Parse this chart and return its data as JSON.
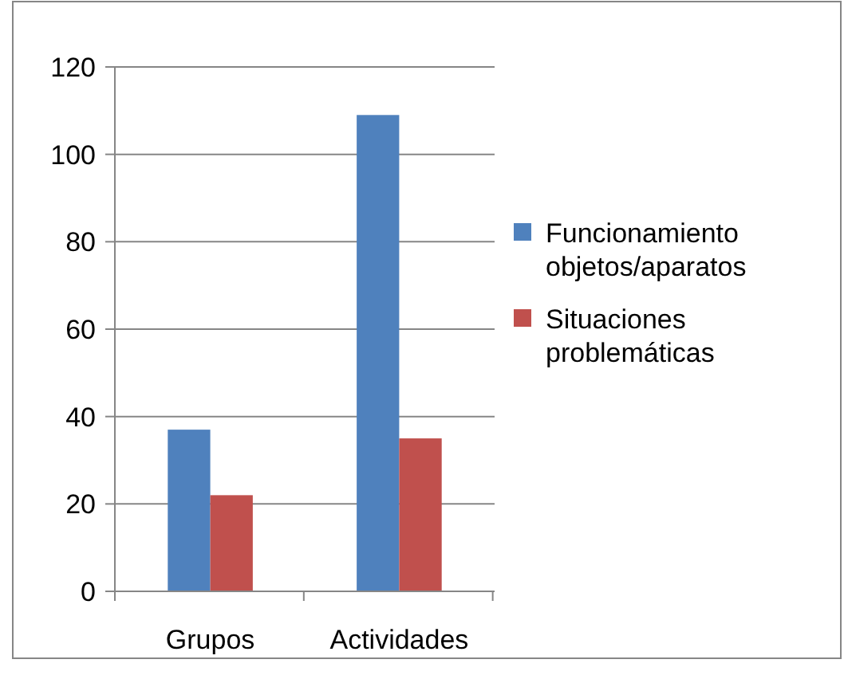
{
  "chart_data": {
    "type": "bar",
    "categories": [
      "Grupos",
      "Actividades"
    ],
    "series": [
      {
        "name": "Funcionamiento objetos/aparatos",
        "color": "#4f81bd",
        "values": [
          37,
          109
        ]
      },
      {
        "name": "Situaciones problemáticas",
        "color": "#c0504d",
        "values": [
          22,
          35
        ]
      }
    ],
    "ylim": [
      0,
      120
    ],
    "yticks": [
      0,
      20,
      40,
      60,
      80,
      100,
      120
    ],
    "grid": "y",
    "legend": "right"
  }
}
